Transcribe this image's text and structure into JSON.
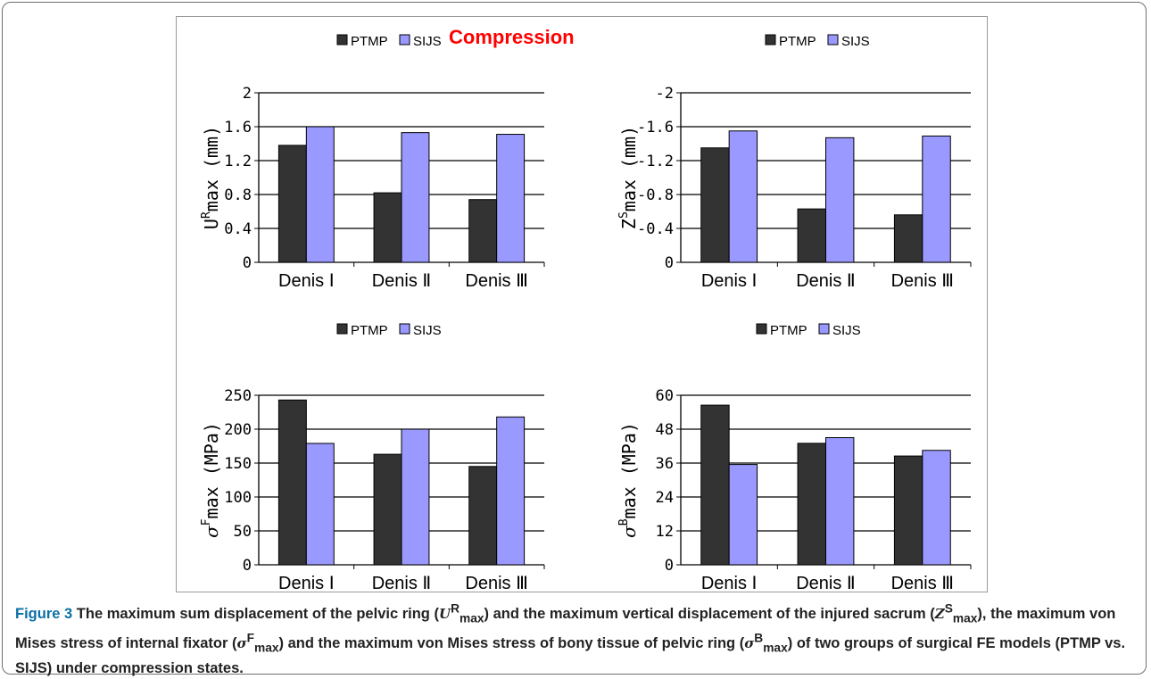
{
  "figure_title": "Compression",
  "legend": [
    "PTMP",
    "SIJS"
  ],
  "colors": {
    "PTMP": "#333333",
    "SIJS": "#9999ff",
    "title": "#ff0000"
  },
  "caption": {
    "label": "Figure 3",
    "text_1": "The maximum sum displacement of the pelvic ring (",
    "sym_1": "U",
    "sup_1": "R",
    "sub_1": "max",
    "text_2": ") and the maximum vertical displacement of the injured sacrum (",
    "sym_2": "Z",
    "sup_2": "S",
    "sub_2": "max",
    "text_3": "), the maximum von Mises stress of internal fixator (",
    "sym_3": "σ",
    "sup_3": "F",
    "sub_3": "max",
    "text_4": ") and the maximum von Mises stress of bony tissue of pelvic ring (",
    "sym_4": "σ",
    "sup_4": "B",
    "sub_4": "max",
    "text_5": ") of two groups of surgical FE models (PTMP vs. SIJS) under compression states."
  },
  "chart_data": [
    {
      "type": "bar",
      "categories": [
        "Denis Ⅰ",
        "Denis Ⅱ",
        "Denis Ⅲ"
      ],
      "series": [
        {
          "name": "PTMP",
          "values": [
            1.38,
            0.82,
            0.74
          ]
        },
        {
          "name": "SIJS",
          "values": [
            1.6,
            1.53,
            1.51
          ]
        }
      ],
      "yticks": [
        "0",
        "0.4",
        "0.8",
        "1.2",
        "1.6",
        "2"
      ],
      "ylabel": "U",
      "ylabel_sup": "R",
      "ylabel_rest": "max (mm)",
      "ylim": [
        0,
        2
      ],
      "grid": true,
      "legend_position": "top"
    },
    {
      "type": "bar",
      "categories": [
        "Denis Ⅰ",
        "Denis Ⅱ",
        "Denis Ⅲ"
      ],
      "series": [
        {
          "name": "PTMP",
          "values": [
            -1.35,
            -0.63,
            -0.56
          ]
        },
        {
          "name": "SIJS",
          "values": [
            -1.55,
            -1.47,
            -1.49
          ]
        }
      ],
      "yticks": [
        "0",
        "-0.4",
        "-0.8",
        "-1.2",
        "-1.6",
        "-2"
      ],
      "ylabel": "Z",
      "ylabel_sup": "S",
      "ylabel_rest": "max (mm)",
      "ylim": [
        0,
        -2
      ],
      "grid": true,
      "legend_position": "top"
    },
    {
      "type": "bar",
      "categories": [
        "Denis Ⅰ",
        "Denis Ⅱ",
        "Denis Ⅲ"
      ],
      "series": [
        {
          "name": "PTMP",
          "values": [
            243,
            163,
            145
          ]
        },
        {
          "name": "SIJS",
          "values": [
            179,
            200,
            218
          ]
        }
      ],
      "yticks": [
        "0",
        "50",
        "100",
        "150",
        "200",
        "250"
      ],
      "ylabel": "σ",
      "ylabel_sup": "F",
      "ylabel_rest": "max (MPa)",
      "ylim": [
        0,
        250
      ],
      "grid": true,
      "legend_position": "top"
    },
    {
      "type": "bar",
      "categories": [
        "Denis Ⅰ",
        "Denis Ⅱ",
        "Denis Ⅲ"
      ],
      "series": [
        {
          "name": "PTMP",
          "values": [
            56.5,
            43,
            38.5
          ]
        },
        {
          "name": "SIJS",
          "values": [
            35.5,
            45,
            40.5
          ]
        }
      ],
      "yticks": [
        "0",
        "12",
        "24",
        "36",
        "48",
        "60"
      ],
      "ylabel": "σ",
      "ylabel_sup": "B",
      "ylabel_rest": "max (MPa)",
      "ylim": [
        0,
        60
      ],
      "grid": true,
      "legend_position": "top"
    }
  ]
}
